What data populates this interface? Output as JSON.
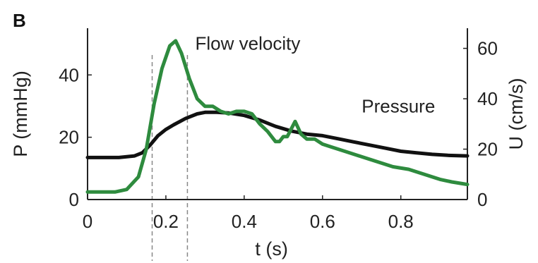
{
  "chart_data": {
    "type": "line",
    "panel_label": "B",
    "xlabel": "t (s)",
    "ylabel_left": "P (mmHg)",
    "ylabel_right": "U (cm/s)",
    "xlim": [
      0,
      0.97
    ],
    "ylim_left": [
      0,
      55
    ],
    "ylim_right": [
      0,
      68
    ],
    "xticks": [
      "0",
      "0.2",
      "0.4",
      "0.6",
      "0.8"
    ],
    "xtick_values": [
      0,
      0.2,
      0.4,
      0.6,
      0.8
    ],
    "yticks_left": [
      "0",
      "20",
      "40"
    ],
    "ytick_values_left": [
      0,
      20,
      40
    ],
    "yticks_right": [
      "0",
      "20",
      "40",
      "60"
    ],
    "ytick_values_right": [
      0,
      20,
      40,
      60
    ],
    "vlines": [
      0.165,
      0.255
    ],
    "annotations": [
      {
        "text": "Flow velocity",
        "x": 0.275,
        "y_axis": "right",
        "y": 62
      },
      {
        "text": "Pressure",
        "x": 0.7,
        "y_axis": "left",
        "y": 30
      }
    ],
    "series": [
      {
        "name": "Pressure",
        "axis": "left",
        "color": "#111111",
        "x": [
          0,
          0.08,
          0.12,
          0.14,
          0.16,
          0.18,
          0.2,
          0.22,
          0.25,
          0.28,
          0.3,
          0.33,
          0.36,
          0.4,
          0.44,
          0.48,
          0.52,
          0.56,
          0.6,
          0.64,
          0.68,
          0.72,
          0.76,
          0.8,
          0.84,
          0.88,
          0.92,
          0.97
        ],
        "y": [
          13.5,
          13.5,
          14.0,
          15.0,
          17.5,
          20.5,
          22.5,
          24.0,
          26.0,
          27.5,
          28.0,
          28.0,
          27.8,
          27.0,
          25.5,
          23.5,
          22.0,
          21.0,
          20.5,
          19.5,
          18.5,
          17.5,
          16.5,
          15.5,
          15.0,
          14.5,
          14.2,
          14.0
        ]
      },
      {
        "name": "Flow velocity",
        "axis": "right",
        "color": "#2e8b3e",
        "x": [
          0,
          0.07,
          0.1,
          0.13,
          0.15,
          0.17,
          0.19,
          0.21,
          0.225,
          0.24,
          0.26,
          0.28,
          0.3,
          0.32,
          0.34,
          0.36,
          0.38,
          0.4,
          0.42,
          0.44,
          0.46,
          0.48,
          0.49,
          0.5,
          0.51,
          0.53,
          0.545,
          0.56,
          0.58,
          0.6,
          0.62,
          0.66,
          0.7,
          0.74,
          0.78,
          0.82,
          0.86,
          0.9,
          0.93,
          0.97
        ],
        "y": [
          3,
          3,
          4,
          9,
          20,
          38,
          52,
          61,
          63,
          58,
          48,
          40,
          37,
          37,
          35,
          34,
          35,
          35,
          34,
          30,
          27,
          23,
          23,
          25,
          25,
          31,
          26,
          24,
          24,
          22,
          21,
          19,
          17,
          15,
          13,
          12,
          10,
          8,
          7,
          6
        ]
      }
    ]
  }
}
